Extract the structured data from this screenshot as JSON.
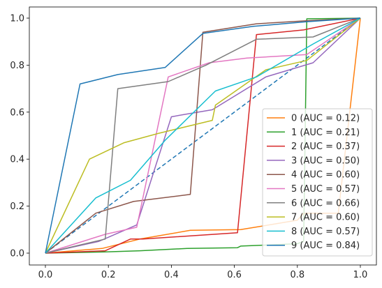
{
  "chart_data": {
    "type": "line",
    "title": "",
    "xlabel": "",
    "ylabel": "",
    "xlim": [
      0.0,
      1.0
    ],
    "ylim": [
      0.0,
      1.0
    ],
    "x_ticks": [
      "0.0",
      "0.2",
      "0.4",
      "0.6",
      "0.8",
      "1.0"
    ],
    "y_ticks": [
      "0.0",
      "0.2",
      "0.4",
      "0.6",
      "0.8",
      "1.0"
    ],
    "grid": false,
    "legend_position": "lower-right",
    "diagonal": {
      "x": [
        0,
        1
      ],
      "y": [
        0,
        1
      ],
      "color": "#1f77b4",
      "style": "dashed"
    },
    "series": [
      {
        "name": "0 (AUC = 0.12)",
        "color": "#ff7f0e",
        "x": [
          0,
          0.18,
          0.3,
          0.46,
          0.62,
          0.8,
          0.82,
          0.93,
          1.0
        ],
        "y": [
          0,
          0.02,
          0.06,
          0.097,
          0.1,
          0.14,
          0.17,
          0.17,
          1.0
        ]
      },
      {
        "name": "1 (AUC = 0.21)",
        "color": "#2ca02c",
        "x": [
          0,
          0.19,
          0.3,
          0.45,
          0.61,
          0.62,
          0.8,
          0.82,
          0.83,
          1.0
        ],
        "y": [
          0,
          0.005,
          0.01,
          0.02,
          0.023,
          0.03,
          0.04,
          0.05,
          0.997,
          1.0
        ]
      },
      {
        "name": "2 (AUC = 0.37)",
        "color": "#d62728",
        "x": [
          0,
          0.19,
          0.27,
          0.31,
          0.61,
          0.67,
          0.82,
          1.0
        ],
        "y": [
          0,
          0.01,
          0.06,
          0.06,
          0.087,
          0.93,
          0.95,
          1.0
        ]
      },
      {
        "name": "3 (AUC = 0.50)",
        "color": "#9467bd",
        "x": [
          0,
          0.17,
          0.29,
          0.4,
          0.44,
          0.53,
          0.7,
          0.85,
          1.0
        ],
        "y": [
          0,
          0.05,
          0.12,
          0.58,
          0.59,
          0.61,
          0.75,
          0.81,
          1.0
        ]
      },
      {
        "name": "4 (AUC = 0.60)",
        "color": "#8c564b",
        "x": [
          0,
          0.16,
          0.28,
          0.46,
          0.5,
          0.67,
          0.82,
          1.0
        ],
        "y": [
          0,
          0.17,
          0.22,
          0.25,
          0.94,
          0.976,
          0.988,
          1.0
        ]
      },
      {
        "name": "5 (AUC = 0.57)",
        "color": "#e377c2",
        "x": [
          0,
          0.19,
          0.29,
          0.39,
          0.52,
          0.64,
          0.83,
          1.0
        ],
        "y": [
          0,
          0.08,
          0.11,
          0.75,
          0.81,
          0.83,
          0.845,
          1.0
        ]
      },
      {
        "name": "6 (AUC = 0.66)",
        "color": "#7f7f7f",
        "x": [
          0,
          0.19,
          0.23,
          0.39,
          0.51,
          0.67,
          0.85,
          1.0
        ],
        "y": [
          0,
          0.06,
          0.7,
          0.73,
          0.8,
          0.91,
          0.92,
          1.0
        ]
      },
      {
        "name": "7 (AUC = 0.60)",
        "color": "#bcbd22",
        "x": [
          0,
          0.14,
          0.25,
          0.36,
          0.53,
          0.54,
          0.7,
          0.83,
          1.0
        ],
        "y": [
          0,
          0.4,
          0.47,
          0.51,
          0.565,
          0.63,
          0.78,
          0.82,
          1.0
        ]
      },
      {
        "name": "8 (AUC = 0.57)",
        "color": "#17becf",
        "x": [
          0,
          0.16,
          0.27,
          0.38,
          0.54,
          0.67,
          0.85,
          1.0
        ],
        "y": [
          0,
          0.235,
          0.31,
          0.48,
          0.69,
          0.75,
          0.89,
          1.0
        ]
      },
      {
        "name": "9 (AUC = 0.84)",
        "color": "#1f77b4",
        "x": [
          0,
          0.11,
          0.23,
          0.38,
          0.5,
          0.66,
          0.83,
          1.0
        ],
        "y": [
          0,
          0.72,
          0.76,
          0.79,
          0.935,
          0.965,
          0.985,
          1.0
        ]
      }
    ]
  }
}
